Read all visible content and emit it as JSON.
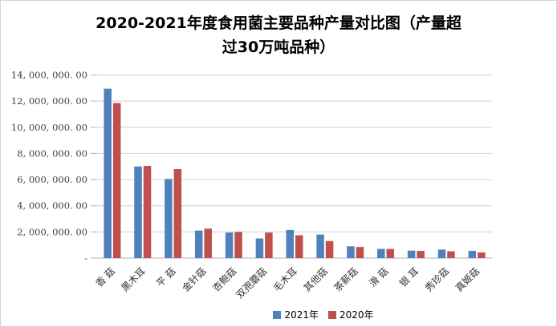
{
  "chart_data": {
    "type": "bar",
    "title": "2020-2021年度食用菌主要品种产量对比图（产量超过30万吨品种）",
    "title_lines": {
      "0": "2020-2021年度食用菌主要品种产量对比图（产量超",
      "1": "过30万吨品种）"
    },
    "categories": [
      "香 菇",
      "黑木耳",
      "平 菇",
      "金针菇",
      "杏鲍菇",
      "双孢蘑菇",
      "毛木耳",
      "其他菇",
      "茶薪菇",
      "滑 菇",
      "银 耳",
      "秀珍菇",
      "真姬菇"
    ],
    "series": [
      {
        "name": "2021年",
        "color": "#4F81BD",
        "values": [
          12950000,
          7000000,
          6050000,
          2100000,
          1950000,
          1500000,
          2150000,
          1800000,
          900000,
          700000,
          570000,
          650000,
          550000
        ]
      },
      {
        "name": "2020年",
        "color": "#C0504D",
        "values": [
          11850000,
          7050000,
          6800000,
          2250000,
          2000000,
          1950000,
          1750000,
          1300000,
          850000,
          700000,
          550000,
          520000,
          430000
        ]
      }
    ],
    "xlabel": "",
    "ylabel": "",
    "ylim": [
      0,
      14000000
    ],
    "ytick_interval": 2000000,
    "ytick_labels": [
      "-",
      "2, 000, 000. 00",
      "4, 000, 000. 00",
      "6, 000, 000. 00",
      "8, 000, 000. 00",
      "10, 000, 000. 00",
      "12, 000, 000. 00",
      "14, 000, 000. 00"
    ],
    "grid": true,
    "legend_position": "bottom-center",
    "colors": {
      "gridline": "#D9D9D9",
      "axis": "#BFBFBF",
      "border": "#D4D4D4",
      "title_text": "#000000",
      "tick_text": "#404040"
    }
  }
}
